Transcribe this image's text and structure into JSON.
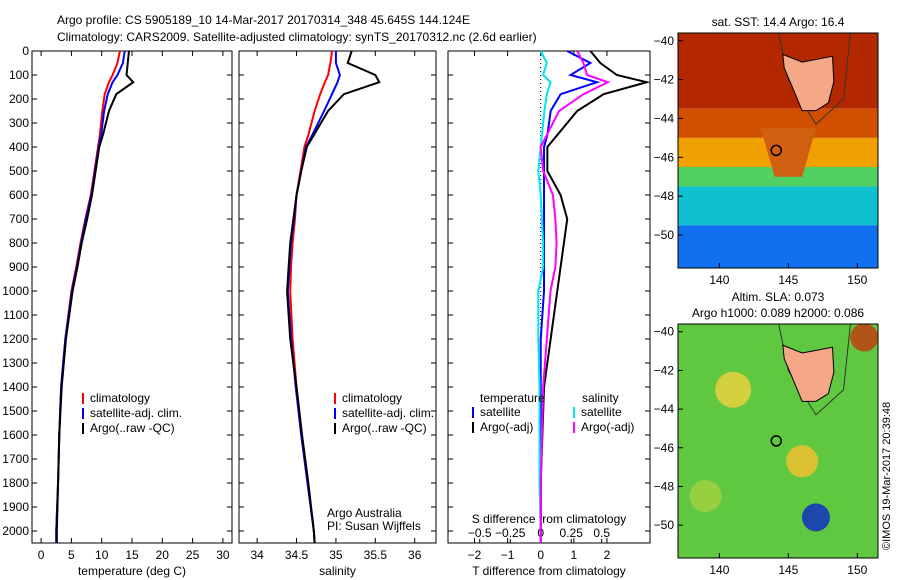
{
  "chart_data": [
    {
      "type": "line",
      "title": "Argo profile: CS 5905189_10 14-Mar-2017 20170314_348 45.645S 144.124E",
      "subtitle": "Climatology: CARS2009. Satellite-adjusted climatology: synTS_20170312.nc (2.6d earlier)",
      "xlabel": "temperature (deg C)",
      "xlim": [
        -1.5,
        31.5
      ],
      "xticks": [
        0,
        5,
        10,
        15,
        20,
        25,
        30
      ],
      "ylim": [
        0,
        2050
      ],
      "yticks": [
        0,
        100,
        200,
        300,
        400,
        500,
        600,
        700,
        800,
        900,
        1000,
        1100,
        1200,
        1300,
        1400,
        1500,
        1600,
        1700,
        1800,
        1900,
        2000
      ],
      "legend": [
        "climatology",
        "satellite-adj. clim.",
        "Argo(..raw -QC)"
      ],
      "depth": [
        0,
        50,
        100,
        130,
        180,
        250,
        350,
        400,
        500,
        600,
        700,
        800,
        900,
        1000,
        1200,
        1400,
        1600,
        1800,
        2000,
        2050
      ],
      "series": [
        {
          "name": "climatology",
          "color": "#ff0000",
          "values": [
            13,
            12.6,
            11.8,
            11.2,
            10.5,
            10.1,
            9.7,
            9.4,
            8.8,
            8.2,
            7.3,
            6.5,
            5.8,
            5.0,
            4.0,
            3.3,
            3.0,
            2.8,
            2.5,
            2.5
          ]
        },
        {
          "name": "satellite-adj. clim.",
          "color": "#0000ff",
          "values": [
            13.8,
            13.5,
            12.6,
            11.8,
            11,
            10.4,
            9.9,
            9.5,
            8.9,
            8.3,
            7.4,
            6.6,
            5.9,
            5.1,
            4.0,
            3.3,
            3.0,
            2.8,
            2.5,
            2.5
          ]
        },
        {
          "name": "Argo(..raw -QC)",
          "color": "#000000",
          "values": [
            14.5,
            14.3,
            14.1,
            15.2,
            12.4,
            11.2,
            10.2,
            9.6,
            9.0,
            8.4,
            7.6,
            6.7,
            6.0,
            5.2,
            4.1,
            3.4,
            3.0,
            2.8,
            2.6,
            2.6
          ]
        }
      ]
    },
    {
      "type": "line",
      "xlabel": "salinity",
      "xlim": [
        33.77,
        36.27
      ],
      "xticks": [
        34,
        34.5,
        35,
        35.5,
        36
      ],
      "legend": [
        "climatology",
        "satellite-adj. clim.",
        "Argo(..raw -QC)"
      ],
      "annotation": [
        "Argo Australia",
        "PI: Susan Wijffels"
      ],
      "depth": [
        0,
        50,
        100,
        130,
        180,
        250,
        350,
        400,
        500,
        600,
        700,
        800,
        900,
        1000,
        1200,
        1400,
        1600,
        1800,
        2000,
        2050
      ],
      "series": [
        {
          "name": "climatology",
          "color": "#ff0000",
          "values": [
            34.95,
            34.93,
            34.9,
            34.86,
            34.8,
            34.73,
            34.65,
            34.6,
            34.55,
            34.5,
            34.48,
            34.45,
            34.43,
            34.42,
            34.45,
            34.5,
            34.56,
            34.64,
            34.72,
            34.73
          ]
        },
        {
          "name": "satellite-adj. clim.",
          "color": "#0000ff",
          "values": [
            35.0,
            35.0,
            35.05,
            35.02,
            34.95,
            34.85,
            34.7,
            34.62,
            34.56,
            34.5,
            34.47,
            34.43,
            34.41,
            34.39,
            34.43,
            34.49,
            34.56,
            34.64,
            34.72,
            34.73
          ]
        },
        {
          "name": "Argo(..raw -QC)",
          "color": "#000000",
          "values": [
            35.2,
            35.15,
            35.5,
            35.55,
            35.1,
            34.9,
            34.72,
            34.63,
            34.56,
            34.5,
            34.46,
            34.42,
            34.4,
            34.38,
            34.42,
            34.5,
            34.57,
            34.65,
            34.72,
            34.73
          ]
        }
      ]
    },
    {
      "type": "line",
      "xlabel": "T difference from climatology",
      "xlim": [
        -2.8,
        3.3
      ],
      "xticks": [
        -2,
        -1,
        0,
        1,
        2
      ],
      "x2label": "S difference from climatology",
      "x2ticks": [
        -0.5,
        -0.25,
        0,
        0.25,
        0.5
      ],
      "legend_title": [
        "temperature",
        "salinity"
      ],
      "legend": [
        "satellite",
        "Argo(-adj)",
        "satellite",
        "Argo(-adj)"
      ],
      "depth": [
        0,
        50,
        100,
        130,
        180,
        250,
        350,
        400,
        500,
        600,
        700,
        800,
        900,
        1000,
        1200,
        1400,
        1600,
        1800,
        2000,
        2050
      ],
      "series": [
        {
          "name": "T satellite",
          "color": "#0000ff",
          "values": [
            0.8,
            1.5,
            0.9,
            1.7,
            0.6,
            0.3,
            0.2,
            0.1,
            0.1,
            0.1,
            0.1,
            0.1,
            0.1,
            0.1,
            0,
            0,
            0,
            0,
            0,
            0
          ]
        },
        {
          "name": "T Argo(-adj)",
          "color": "#000000",
          "values": [
            1.5,
            1.8,
            2.3,
            3.2,
            1.9,
            1.1,
            0.5,
            0.2,
            0.2,
            0.6,
            0.8,
            0.7,
            0.6,
            0.5,
            0.3,
            0.1,
            0.05,
            0,
            0,
            0
          ]
        },
        {
          "name": "S satellite",
          "color": "#00e5ee",
          "values": [
            0,
            0.05,
            0.02,
            0.08,
            0.05,
            0.03,
            0.01,
            0,
            -0.02,
            0,
            0.01,
            0.02,
            0.02,
            -0.02,
            -0.02,
            -0.01,
            -0.01,
            -0.01,
            0,
            0
          ]
        },
        {
          "name": "S Argo(-adj)",
          "color": "#ff00ff",
          "values": [
            0.3,
            0.35,
            0.38,
            0.55,
            0.35,
            0.15,
            0.05,
            0,
            0.02,
            0.1,
            0.12,
            0.13,
            0.12,
            0.08,
            0.05,
            0.02,
            0.01,
            0,
            0,
            0
          ]
        }
      ]
    },
    {
      "type": "heatmap",
      "title": "sat. SST: 14.4  Argo: 16.4",
      "xlim": [
        137,
        151.5
      ],
      "ylim": [
        -51.7,
        -39.6
      ],
      "xticks": [
        140,
        145,
        150
      ],
      "yticks": [
        -40,
        -42,
        -44,
        -46,
        -48,
        -50
      ],
      "argo_position": [
        144.124,
        -45.645
      ]
    },
    {
      "type": "heatmap",
      "title": "Altim. SLA: 0.073",
      "subtitle": "Argo h1000: 0.089 h2000: 0.086",
      "xlim": [
        137,
        151.5
      ],
      "ylim": [
        -51.7,
        -39.6
      ],
      "xticks": [
        140,
        145,
        150
      ],
      "yticks": [
        -40,
        -42,
        -44,
        -46,
        -48,
        -50
      ],
      "argo_position": [
        144.124,
        -45.645
      ]
    }
  ],
  "credit": "©IMOS 19-Mar-2017 20:39:48"
}
